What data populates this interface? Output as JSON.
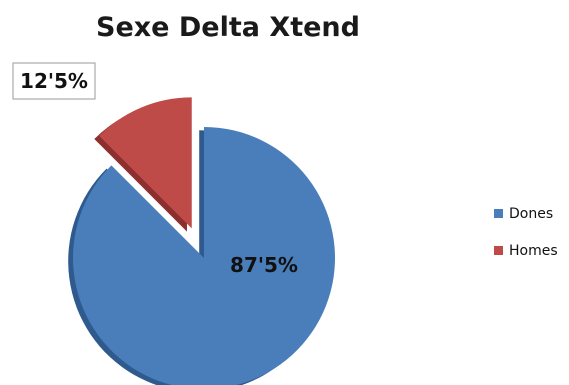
{
  "chart_data": {
    "type": "pie",
    "title": "Sexe Delta Xtend",
    "exploded": true,
    "three_d": true,
    "legend_position": "right",
    "slices": [
      {
        "name": "Dones",
        "value": 87.5,
        "label": "87'5%",
        "color": "#4a7ebb",
        "side_color": "#2f5a8e"
      },
      {
        "name": "Homes",
        "value": 12.5,
        "label": "12'5%",
        "color": "#be4b48",
        "side_color": "#8c2f2d"
      }
    ]
  }
}
